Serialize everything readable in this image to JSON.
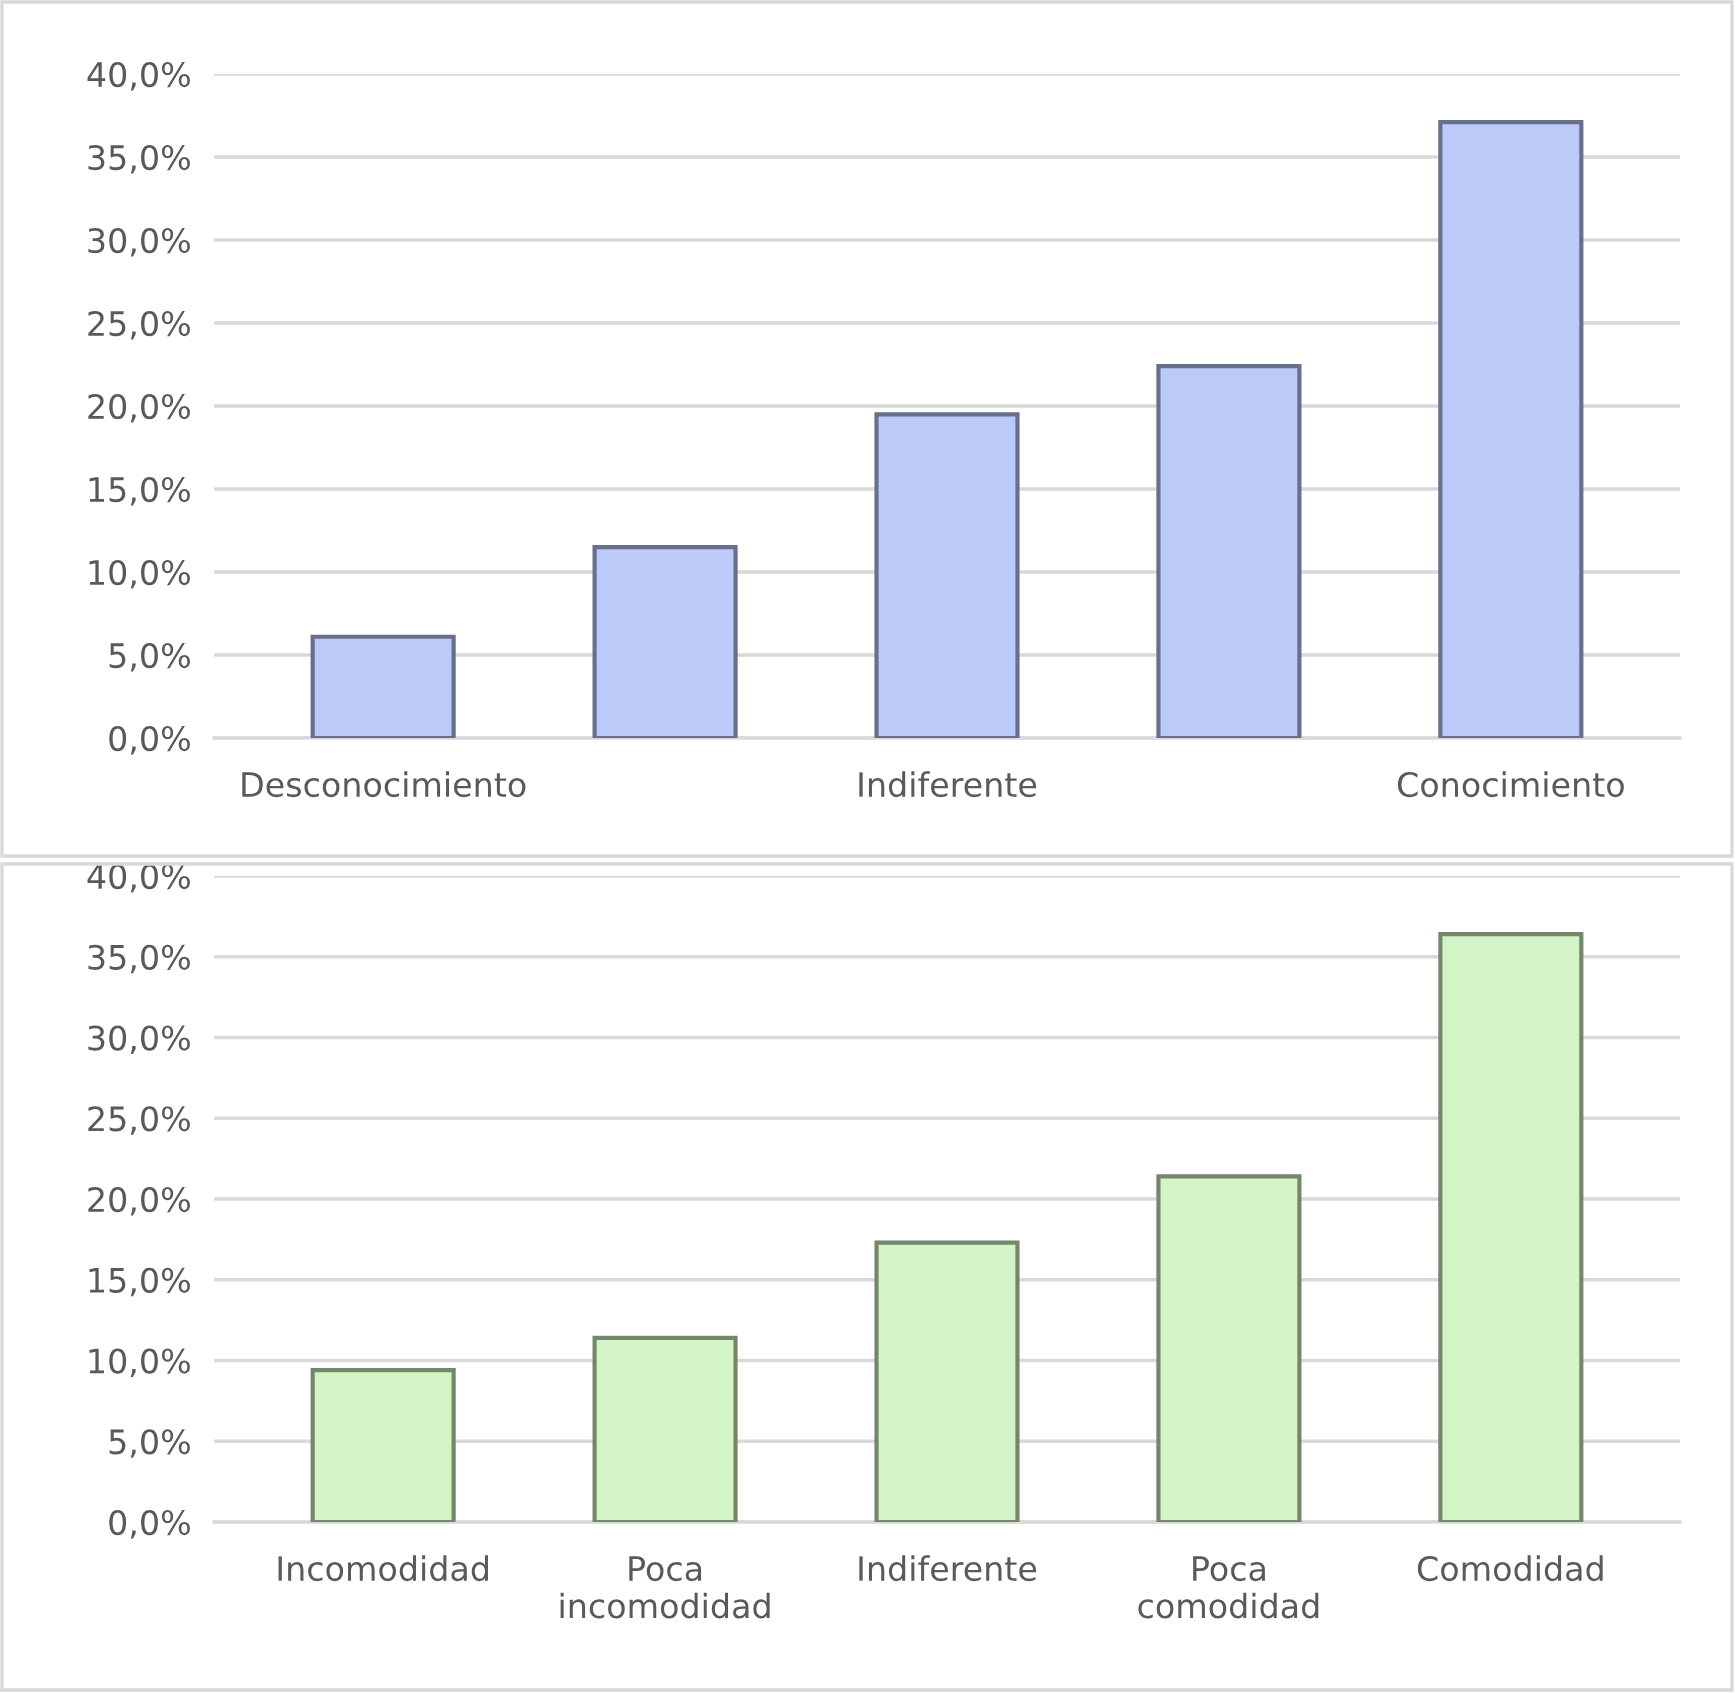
{
  "chart_data": [
    {
      "type": "bar",
      "categories": [
        "Desconocimiento",
        null,
        "Indiferente",
        null,
        "Conocimiento"
      ],
      "values": [
        6.1,
        11.5,
        19.5,
        22.4,
        37.1
      ],
      "color": "#bccafa",
      "ylim": [
        0,
        40
      ],
      "yticks": [
        {
          "value": 0,
          "label": "0,0%"
        },
        {
          "value": 5,
          "label": "5,0%"
        },
        {
          "value": 10,
          "label": "10,0%"
        },
        {
          "value": 15,
          "label": "15,0%"
        },
        {
          "value": 20,
          "label": "20,0%"
        },
        {
          "value": 25,
          "label": "25,0%"
        },
        {
          "value": 30,
          "label": "30,0%"
        },
        {
          "value": 35,
          "label": "35,0%"
        },
        {
          "value": 40,
          "label": "40,0%"
        }
      ],
      "grid": "y",
      "legend": false
    },
    {
      "type": "bar",
      "categories": [
        "Incomodidad",
        "Poca\nincomodidad",
        "Indiferente",
        "Poca\ncomodidad",
        "Comodidad"
      ],
      "values": [
        9.4,
        11.4,
        17.3,
        21.4,
        36.4
      ],
      "color": "#d3f5c6",
      "ylim": [
        0,
        40
      ],
      "yticks": [
        {
          "value": 0,
          "label": "0,0%"
        },
        {
          "value": 5,
          "label": "5,0%"
        },
        {
          "value": 10,
          "label": "10,0%"
        },
        {
          "value": 15,
          "label": "15,0%"
        },
        {
          "value": 20,
          "label": "20,0%"
        },
        {
          "value": 25,
          "label": "25,0%"
        },
        {
          "value": 30,
          "label": "30,0%"
        },
        {
          "value": 35,
          "label": "35,0%"
        },
        {
          "value": 40,
          "label": "40,0%"
        }
      ],
      "grid": "y",
      "legend": false
    }
  ]
}
